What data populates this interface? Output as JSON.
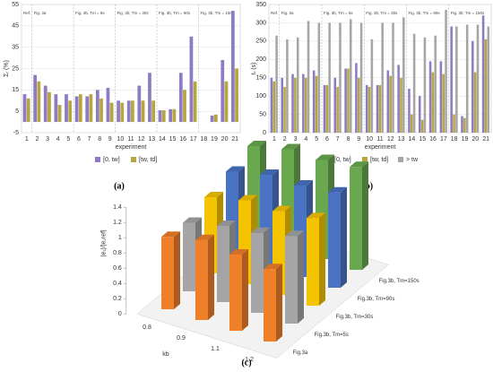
{
  "chart_data": [
    {
      "type": "bar",
      "caption": "(a)",
      "xlabel": "experiment",
      "ylabel": "Σᵣ (%)",
      "categories": [
        "1",
        "2",
        "3",
        "4",
        "5",
        "6",
        "7",
        "8",
        "9",
        "10",
        "11",
        "12",
        "13",
        "14",
        "15",
        "16",
        "17",
        "18",
        "19",
        "20",
        "21"
      ],
      "sections": [
        "Ref.",
        "Fig. 3a",
        "Fig. 3b, Tm = 5s",
        "Fig. 3b, Tm = 30s",
        "Fig. 3b, Tm = 90s",
        "Fig. 3b, Tm = 150s"
      ],
      "series": [
        {
          "name": "[0, tw]",
          "color": "#8f7bc4",
          "values": [
            13,
            22,
            17,
            13,
            13,
            12,
            12,
            15,
            16,
            10,
            10,
            17,
            23,
            5.5,
            6,
            23,
            40,
            0,
            3,
            29,
            52
          ]
        },
        {
          "name": "[tw, td]",
          "color": "#b5a642",
          "values": [
            11,
            19,
            14,
            8,
            10,
            13,
            13,
            11,
            9,
            9,
            10,
            10,
            10,
            5.5,
            6,
            15,
            19,
            0,
            3.5,
            19,
            25
          ]
        }
      ],
      "ylim": [
        -5,
        55
      ],
      "yticks": [
        -5,
        5,
        15,
        25,
        35,
        45,
        55
      ],
      "grid": true,
      "legend": "bottom"
    },
    {
      "type": "bar",
      "caption": "(b)",
      "xlabel": "experiment",
      "ylabel": "tᵣ (s)",
      "categories": [
        "1",
        "2",
        "3",
        "4",
        "5",
        "6",
        "7",
        "8",
        "9",
        "10",
        "11",
        "12",
        "13",
        "14",
        "15",
        "16",
        "17",
        "18",
        "19",
        "20",
        "21"
      ],
      "sections": [
        "Ref.",
        "Fig. 3a",
        "Fig. 3b, Tm = 5s",
        "Fig. 3b, Tm = 30s",
        "Fig. 3b, Tm = 90s",
        "Fig. 3b, Tm = 150s"
      ],
      "series": [
        {
          "name": "[0, tw]",
          "color": "#8f7bc4",
          "values": [
            150,
            150,
            160,
            160,
            170,
            130,
            150,
            175,
            190,
            130,
            130,
            170,
            185,
            120,
            100,
            195,
            195,
            290,
            45,
            250,
            320
          ]
        },
        {
          "name": "[tw, td]",
          "color": "#b5a642",
          "values": [
            140,
            125,
            150,
            150,
            155,
            130,
            125,
            175,
            150,
            125,
            130,
            155,
            150,
            50,
            35,
            165,
            160,
            50,
            40,
            165,
            255
          ]
        },
        {
          "name": "> tw",
          "color": "#a6a6a6",
          "values": [
            265,
            255,
            260,
            305,
            300,
            300,
            300,
            310,
            300,
            255,
            300,
            300,
            315,
            270,
            260,
            265,
            335,
            290,
            295,
            295,
            290
          ]
        }
      ],
      "ylim": [
        0,
        350
      ],
      "yticks": [
        0,
        50,
        100,
        150,
        200,
        250,
        300,
        350
      ],
      "grid": true,
      "legend": "bottom"
    },
    {
      "type": "bar3d",
      "caption": "(c)",
      "xlabel": "kb",
      "ylabel": "|e₁|/|e₁ref|",
      "categories": [
        "0.8",
        "0.9",
        "1.1",
        "1.2"
      ],
      "series": [
        {
          "name": "Fig.3a",
          "color": "#f07f2a",
          "values": [
            0.95,
            1.05,
            1.0,
            0.95
          ]
        },
        {
          "name": "Fig.3b, Tm=5s",
          "color": "#a5a5a5",
          "values": [
            0.9,
            1.0,
            1.05,
            1.15
          ]
        },
        {
          "name": "Fig.3b, Tm=30s",
          "color": "#f5c400",
          "values": [
            1.0,
            1.1,
            1.1,
            1.15
          ]
        },
        {
          "name": "Fig.3b, Tm=90s",
          "color": "#4a73c4",
          "values": [
            1.1,
            1.2,
            1.2,
            1.25
          ]
        },
        {
          "name": "Fig.3b, Tm=150s",
          "color": "#6aa84f",
          "values": [
            1.2,
            1.3,
            1.3,
            1.35
          ]
        }
      ],
      "ylim": [
        0,
        1.4
      ],
      "yticks": [
        0,
        0.2,
        0.4,
        0.6,
        0.8,
        1,
        1.2,
        1.4
      ]
    }
  ]
}
